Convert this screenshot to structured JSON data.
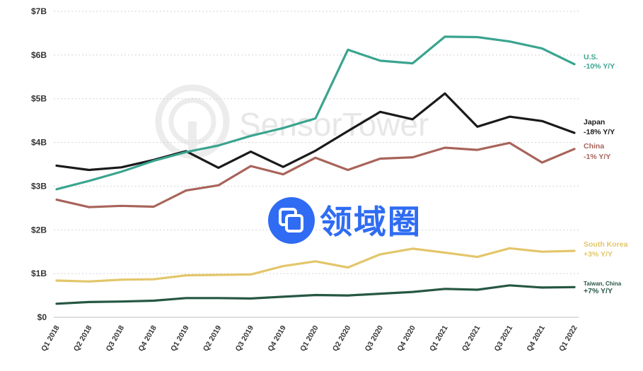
{
  "watermarks": {
    "sensor_tower": "SensorTower",
    "domain_logo": "领域圈"
  },
  "chart_data": {
    "type": "line",
    "title": "",
    "xlabel": "",
    "ylabel": "",
    "ylim": [
      0,
      7
    ],
    "y_ticks": [
      "$0",
      "$1B",
      "$2B",
      "$3B",
      "$4B",
      "$5B",
      "$6B",
      "$7B"
    ],
    "grid": true,
    "legend": "right-end labels",
    "categories": [
      "Q1 2018",
      "Q2 2018",
      "Q3 2018",
      "Q4 2018",
      "Q1 2019",
      "Q2 2019",
      "Q3 2019",
      "Q4 2019",
      "Q1 2020",
      "Q2 2020",
      "Q3 2020",
      "Q4 2020",
      "Q1 2021",
      "Q2 2021",
      "Q3 2021",
      "Q4 2021",
      "Q1 2022"
    ],
    "series": [
      {
        "name": "U.S.",
        "change": "-10% Y/Y",
        "color": "#3aa48f",
        "values": [
          2.93,
          3.12,
          3.33,
          3.58,
          3.78,
          3.93,
          4.15,
          4.33,
          4.55,
          6.12,
          5.87,
          5.81,
          6.42,
          6.41,
          6.31,
          6.15,
          5.79
        ]
      },
      {
        "name": "Japan",
        "change": "-18% Y/Y",
        "color": "#1a1a1a",
        "values": [
          3.47,
          3.37,
          3.43,
          3.6,
          3.8,
          3.42,
          3.79,
          3.44,
          3.81,
          4.26,
          4.7,
          4.53,
          5.12,
          4.36,
          4.59,
          4.49,
          4.22
        ]
      },
      {
        "name": "China",
        "change": "-1% Y/Y",
        "color": "#a8645a",
        "values": [
          2.69,
          2.52,
          2.55,
          2.53,
          2.9,
          3.02,
          3.46,
          3.27,
          3.65,
          3.37,
          3.63,
          3.66,
          3.88,
          3.83,
          3.99,
          3.54,
          3.85
        ]
      },
      {
        "name": "South Korea",
        "change": "+3% Y/Y",
        "color": "#e3c66a",
        "values": [
          0.84,
          0.82,
          0.86,
          0.87,
          0.96,
          0.97,
          0.98,
          1.17,
          1.28,
          1.14,
          1.44,
          1.57,
          1.48,
          1.38,
          1.58,
          1.5,
          1.52
        ]
      },
      {
        "name": "Taiwan, China",
        "change": "+7% Y/Y",
        "color": "#265743",
        "values": [
          0.31,
          0.35,
          0.36,
          0.38,
          0.44,
          0.44,
          0.43,
          0.47,
          0.51,
          0.5,
          0.54,
          0.58,
          0.65,
          0.63,
          0.73,
          0.68,
          0.69
        ]
      }
    ]
  }
}
